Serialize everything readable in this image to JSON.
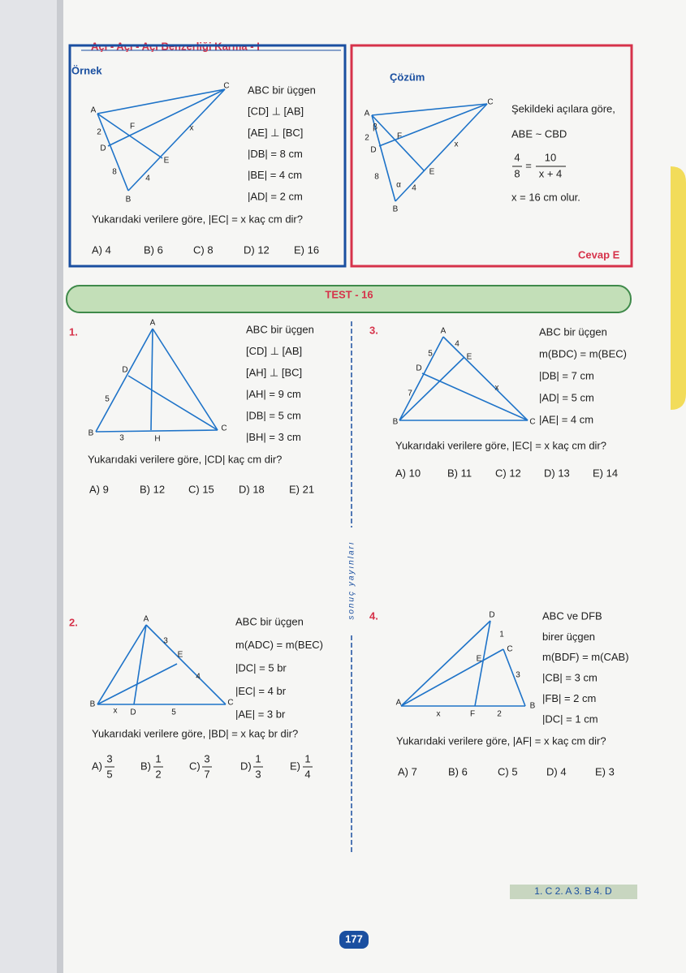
{
  "header": {
    "title": "Açı - Açı - Açı Benzerliği Karma - I"
  },
  "example": {
    "label": "Örnek",
    "given": [
      "ABC  bir üçgen",
      "[CD] ⊥ [AB]",
      "[AE] ⊥ [BC]",
      "|DB| = 8 cm",
      "|BE| = 4 cm",
      "|AD| = 2 cm"
    ],
    "question": "Yukarıdaki verilere göre,  |EC| = x  kaç cm dir?",
    "options": [
      "A) 4",
      "B) 6",
      "C) 8",
      "D) 12",
      "E) 16"
    ],
    "figure": [
      "A",
      "C",
      "B",
      "D",
      "E",
      "F",
      "2",
      "8",
      "4",
      "x"
    ]
  },
  "solution": {
    "label": "Çözüm",
    "lines": [
      "Şekildeki açılara göre,",
      "ABE ~ CBD",
      "x = 16 cm  olur."
    ],
    "fraction": {
      "left_num": "4",
      "left_den": "8",
      "equals": "=",
      "right_num": "10",
      "right_den": "x + 4"
    },
    "answer": "Cevap E",
    "figure": [
      "A",
      "C",
      "B",
      "D",
      "E",
      "F",
      "2",
      "8",
      "4",
      "x",
      "β",
      "α"
    ]
  },
  "test": {
    "title": "TEST - 16"
  },
  "questions": [
    {
      "number": "1.",
      "given": [
        "ABC  bir üçgen",
        "[CD] ⊥ [AB]",
        "[AH] ⊥ [BC]",
        "|AH| = 9 cm",
        "|DB| = 5 cm",
        "|BH| = 3 cm"
      ],
      "question": "Yukarıdaki verilere göre,  |CD|  kaç cm dir?",
      "options": [
        "A) 9",
        "B) 12",
        "C) 15",
        "D) 18",
        "E) 21"
      ],
      "figure": [
        "A",
        "D",
        "B",
        "H",
        "C",
        "5",
        "3"
      ]
    },
    {
      "number": "2.",
      "given": [
        "ABC  bir üçgen",
        "m(ADC) = m(BEC)",
        "|DC| = 5 br",
        "|EC| = 4 br",
        "|AE| = 3 br"
      ],
      "question": "Yukarıdaki verilere göre,  |BD| = x  kaç br dir?",
      "options": [
        {
          "label": "A)",
          "num": "3",
          "den": "5"
        },
        {
          "label": "B)",
          "num": "1",
          "den": "2"
        },
        {
          "label": "C)",
          "num": "3",
          "den": "7"
        },
        {
          "label": "D)",
          "num": "1",
          "den": "3"
        },
        {
          "label": "E)",
          "num": "1",
          "den": "4"
        }
      ],
      "figure": [
        "A",
        "B",
        "C",
        "D",
        "E",
        "x",
        "5",
        "3",
        "4"
      ]
    },
    {
      "number": "3.",
      "given": [
        "ABC  bir üçgen",
        "m(BDC) = m(BEC)",
        "|DB| = 7 cm",
        "|AD| = 5 cm",
        "|AE| = 4 cm"
      ],
      "question": "Yukarıdaki verilere göre,  |EC| = x  kaç cm dir?",
      "options": [
        "A) 10",
        "B) 11",
        "C) 12",
        "D) 13",
        "E) 14"
      ],
      "figure": [
        "A",
        "B",
        "C",
        "D",
        "E",
        "4",
        "5",
        "7",
        "x"
      ]
    },
    {
      "number": "4.",
      "given": [
        "ABC  ve  DFB",
        "birer üçgen",
        "m(BDF) = m(CAB)",
        "|CB| = 3 cm",
        "|FB| = 2 cm",
        "|DC| = 1 cm"
      ],
      "question": "Yukarıdaki verilere göre,  |AF| = x  kaç cm dir?",
      "options": [
        "A) 7",
        "B) 6",
        "C) 5",
        "D) 4",
        "E) 3"
      ],
      "figure": [
        "D",
        "C",
        "E",
        "A",
        "F",
        "B",
        "x",
        "2",
        "3",
        "1"
      ]
    }
  ],
  "publisher": "sonuç yayınları",
  "answer_key": "1. C   2. A   3. B   4. D",
  "page_number": "177"
}
